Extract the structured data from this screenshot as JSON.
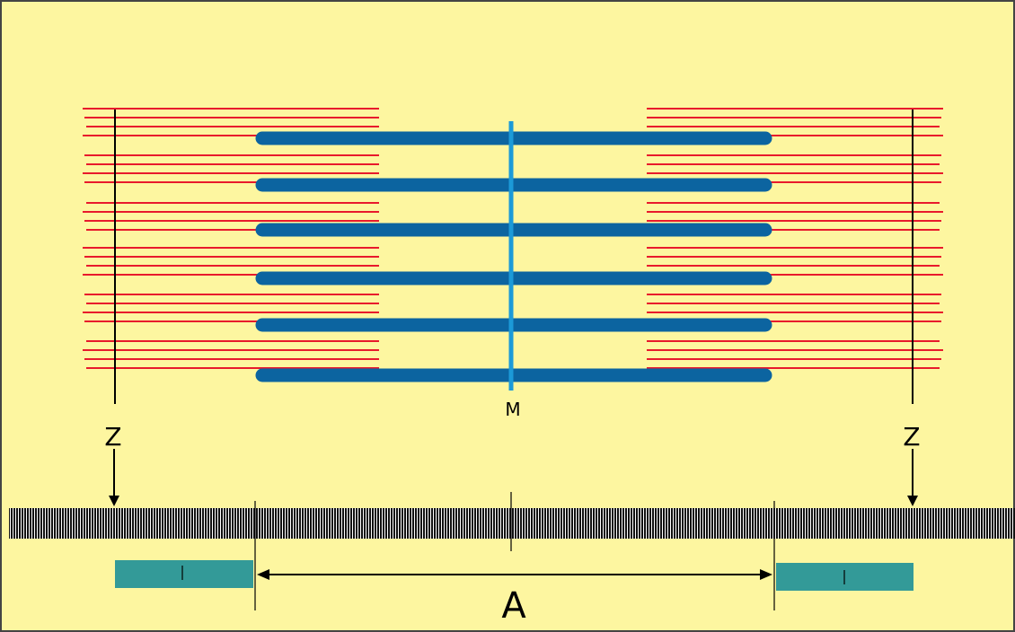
{
  "labels": {
    "m_line": "M",
    "z_left": "Z",
    "z_right": "Z",
    "a_band": "A",
    "i_band_left": "I",
    "i_band_right": "I"
  },
  "colors": {
    "background": "#fdf6a0",
    "thin_filament": "#e8192c",
    "thick_filament": "#0c64a0",
    "m_line": "#1c9ad8",
    "z_disc": "#000000",
    "i_band_bar": "#339a98",
    "striation_band": "#111111"
  }
}
